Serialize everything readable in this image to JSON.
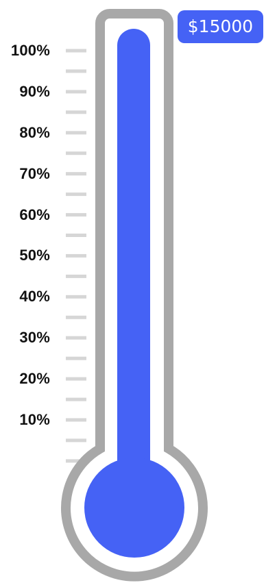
{
  "goal": {
    "amount_label": "$15000"
  },
  "progress": {
    "fill_fraction": 1.0
  },
  "scale": {
    "labels": [
      "100%",
      "90%",
      "80%",
      "70%",
      "60%",
      "50%",
      "40%",
      "30%",
      "20%",
      "10%"
    ],
    "percent_values": [
      100,
      90,
      80,
      70,
      60,
      50,
      40,
      30,
      20,
      10
    ]
  },
  "colors": {
    "fill": "#4562F5",
    "outline": "#A8A8A8",
    "tick": "#D6D6D6",
    "label": "#111111",
    "badge_text": "#FFFFFF"
  }
}
